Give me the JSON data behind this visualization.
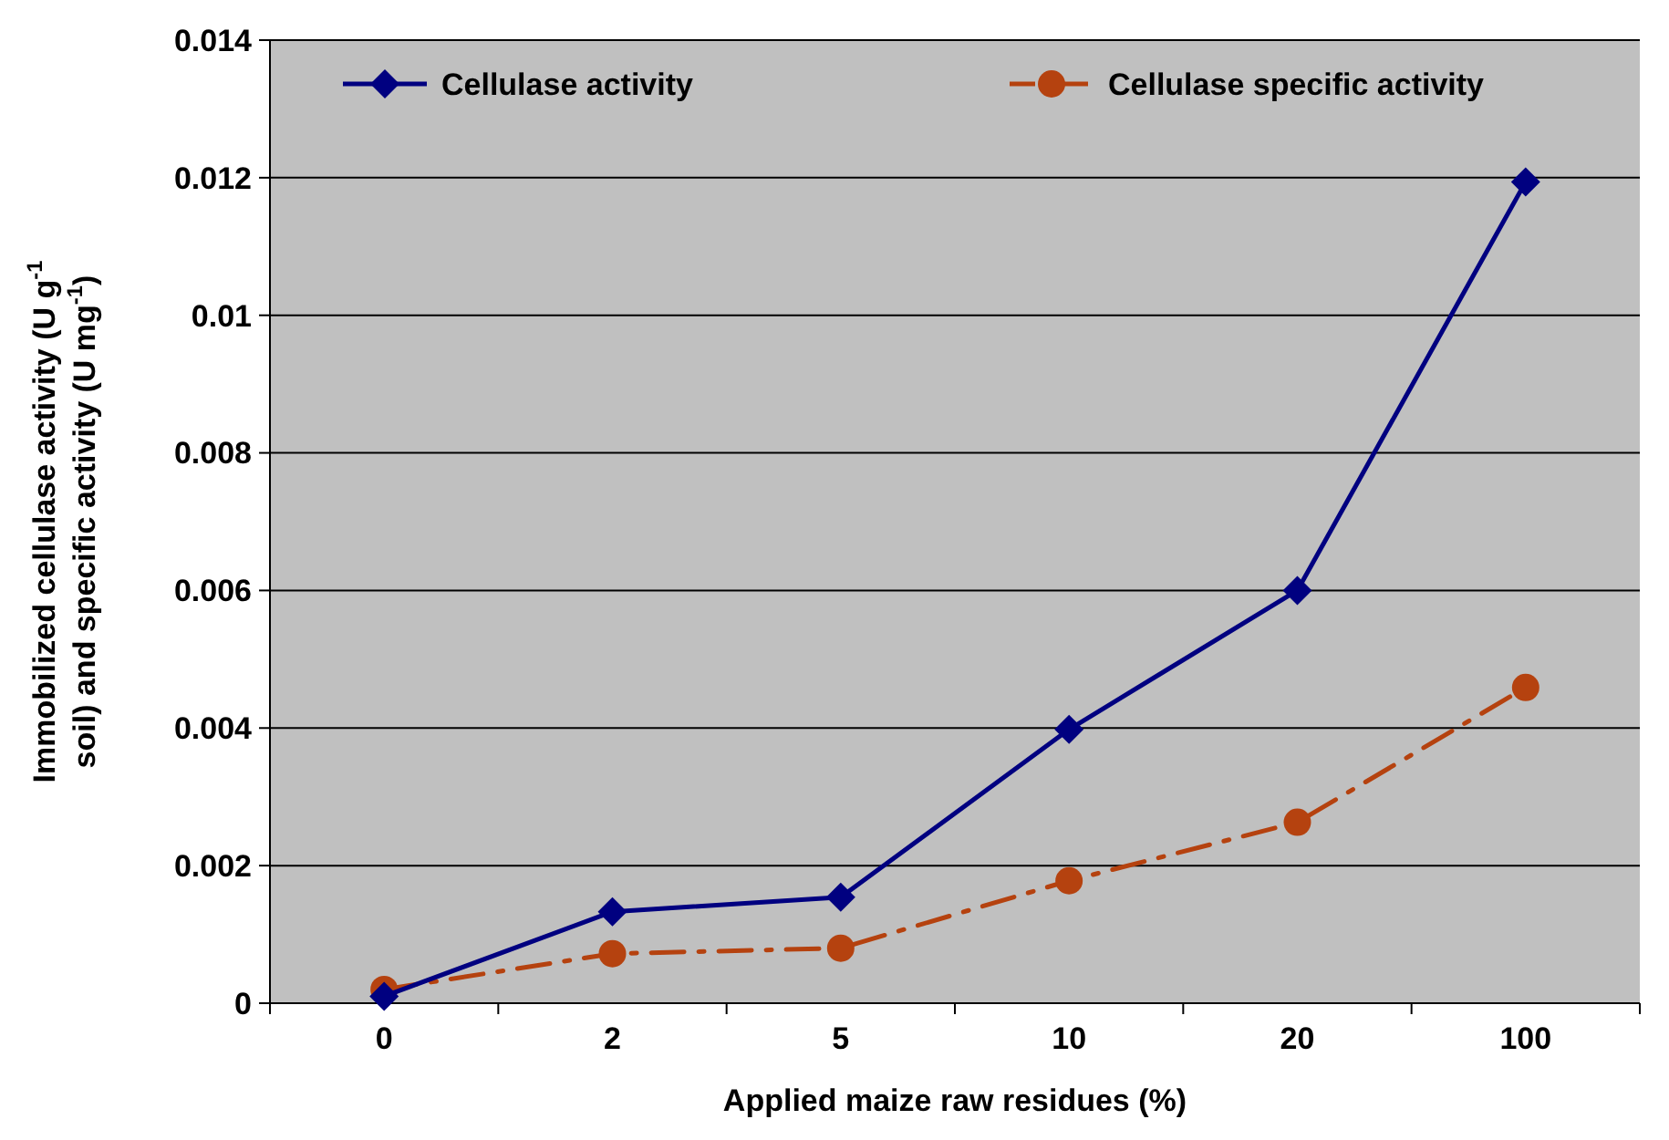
{
  "chart_data": {
    "type": "line",
    "xlabel": "Applied maize raw residues (%)",
    "ylabel": "Immobilized cellulase activity (U g$^{-1}$ soil) and specific activity (U mg$^{-1}$)",
    "categories": [
      "0",
      "2",
      "5",
      "10",
      "20",
      "100"
    ],
    "series": [
      {
        "name": "Cellulase activity",
        "color": "#000080",
        "marker": "diamond",
        "line_style": "solid",
        "values": [
          0.0001,
          0.00133,
          0.00154,
          0.00398,
          0.006,
          0.01194
        ]
      },
      {
        "name": "Cellulase specific activity",
        "color": "#b5420f",
        "marker": "circle",
        "line_style": "dashed",
        "values": [
          0.0002,
          0.00072,
          0.0008,
          0.00178,
          0.00263,
          0.00459
        ]
      }
    ],
    "ylim": [
      0,
      0.014
    ],
    "yticks": [
      0,
      0.002,
      0.004,
      0.006,
      0.008,
      0.01,
      0.012,
      0.014
    ],
    "grid": "y",
    "legend": "top"
  }
}
